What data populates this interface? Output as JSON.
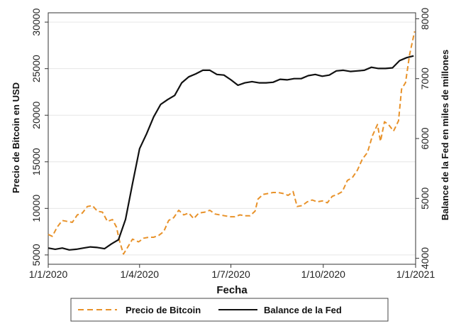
{
  "chart_data": {
    "type": "line",
    "xlabel": "Fecha",
    "ylabel_left": "Precio de Bitcoin en USD",
    "ylabel_right": "Balance de la Fed en miles de millones",
    "x_ticks": [
      "1/1/2020",
      "1/4/2020",
      "1/7/2020",
      "1/10/2020",
      "1/1/2021"
    ],
    "y_left_ticks": [
      "5000",
      "10000",
      "15000",
      "20000",
      "25000",
      "30000"
    ],
    "y_right_ticks": [
      "4000",
      "5000",
      "6000",
      "7000",
      "8000"
    ],
    "y_left_range": [
      4000,
      31000
    ],
    "y_right_range": [
      3900,
      8100
    ],
    "x_range": [
      "2020-01-01",
      "2021-01-01"
    ],
    "grid": "horizontal",
    "legend": "bottom",
    "colors": {
      "bitcoin": "#e8922a",
      "fed": "#111111",
      "grid": "#e6e6e6"
    },
    "series": [
      {
        "name": "Precio de Bitcoin",
        "axis": "left",
        "style": "dashed",
        "x": [
          "2020-01-01",
          "2020-01-05",
          "2020-01-10",
          "2020-01-15",
          "2020-01-20",
          "2020-01-25",
          "2020-01-30",
          "2020-02-04",
          "2020-02-09",
          "2020-02-14",
          "2020-02-19",
          "2020-02-24",
          "2020-02-29",
          "2020-03-05",
          "2020-03-09",
          "2020-03-12",
          "2020-03-16",
          "2020-03-20",
          "2020-03-25",
          "2020-03-31",
          "2020-04-05",
          "2020-04-10",
          "2020-04-15",
          "2020-04-20",
          "2020-04-25",
          "2020-04-30",
          "2020-05-05",
          "2020-05-10",
          "2020-05-15",
          "2020-05-20",
          "2020-05-25",
          "2020-05-30",
          "2020-06-05",
          "2020-06-10",
          "2020-06-15",
          "2020-06-20",
          "2020-06-25",
          "2020-06-30",
          "2020-07-05",
          "2020-07-10",
          "2020-07-15",
          "2020-07-20",
          "2020-07-25",
          "2020-07-28",
          "2020-08-02",
          "2020-08-07",
          "2020-08-12",
          "2020-08-17",
          "2020-08-22",
          "2020-08-27",
          "2020-09-01",
          "2020-09-05",
          "2020-09-10",
          "2020-09-15",
          "2020-09-20",
          "2020-09-25",
          "2020-09-30",
          "2020-10-05",
          "2020-10-10",
          "2020-10-15",
          "2020-10-20",
          "2020-10-25",
          "2020-10-30",
          "2020-11-04",
          "2020-11-09",
          "2020-11-14",
          "2020-11-19",
          "2020-11-24",
          "2020-11-27",
          "2020-12-01",
          "2020-12-05",
          "2020-12-10",
          "2020-12-15",
          "2020-12-18",
          "2020-12-22",
          "2020-12-26",
          "2020-12-31"
        ],
        "values": [
          7200,
          7000,
          8000,
          8700,
          8600,
          8500,
          9300,
          9500,
          10200,
          10300,
          9700,
          9600,
          8600,
          8800,
          8000,
          6500,
          5100,
          5800,
          6700,
          6400,
          6800,
          6900,
          6900,
          7100,
          7500,
          8700,
          9000,
          9800,
          9300,
          9500,
          8900,
          9500,
          9600,
          9800,
          9400,
          9300,
          9200,
          9100,
          9100,
          9300,
          9200,
          9200,
          9700,
          11000,
          11500,
          11600,
          11700,
          11700,
          11600,
          11400,
          11800,
          10200,
          10300,
          10700,
          10900,
          10700,
          10800,
          10600,
          11300,
          11500,
          11800,
          13000,
          13300,
          14100,
          15300,
          16000,
          17800,
          19000,
          17200,
          19300,
          19000,
          18300,
          19400,
          22800,
          23500,
          26500,
          29000
        ]
      },
      {
        "name": "Balance de la Fed",
        "axis": "right",
        "style": "solid",
        "x": [
          "2020-01-01",
          "2020-01-08",
          "2020-01-15",
          "2020-01-22",
          "2020-01-29",
          "2020-02-05",
          "2020-02-12",
          "2020-02-19",
          "2020-02-26",
          "2020-03-04",
          "2020-03-11",
          "2020-03-18",
          "2020-03-25",
          "2020-04-01",
          "2020-04-08",
          "2020-04-15",
          "2020-04-22",
          "2020-04-29",
          "2020-05-06",
          "2020-05-13",
          "2020-05-20",
          "2020-05-27",
          "2020-06-03",
          "2020-06-10",
          "2020-06-17",
          "2020-06-24",
          "2020-07-01",
          "2020-07-08",
          "2020-07-15",
          "2020-07-22",
          "2020-07-29",
          "2020-08-05",
          "2020-08-12",
          "2020-08-19",
          "2020-08-26",
          "2020-09-02",
          "2020-09-09",
          "2020-09-16",
          "2020-09-23",
          "2020-09-30",
          "2020-10-07",
          "2020-10-14",
          "2020-10-21",
          "2020-10-28",
          "2020-11-04",
          "2020-11-11",
          "2020-11-18",
          "2020-11-25",
          "2020-12-02",
          "2020-12-09",
          "2020-12-16",
          "2020-12-23",
          "2020-12-30"
        ],
        "values": [
          4170,
          4150,
          4170,
          4140,
          4150,
          4170,
          4190,
          4180,
          4160,
          4240,
          4310,
          4650,
          5250,
          5830,
          6080,
          6360,
          6570,
          6650,
          6720,
          6930,
          7030,
          7080,
          7140,
          7140,
          7070,
          7060,
          6980,
          6890,
          6930,
          6950,
          6930,
          6930,
          6940,
          6990,
          6980,
          7000,
          7000,
          7050,
          7070,
          7040,
          7060,
          7130,
          7140,
          7120,
          7130,
          7140,
          7190,
          7170,
          7170,
          7180,
          7300,
          7350,
          7380
        ]
      }
    ]
  }
}
